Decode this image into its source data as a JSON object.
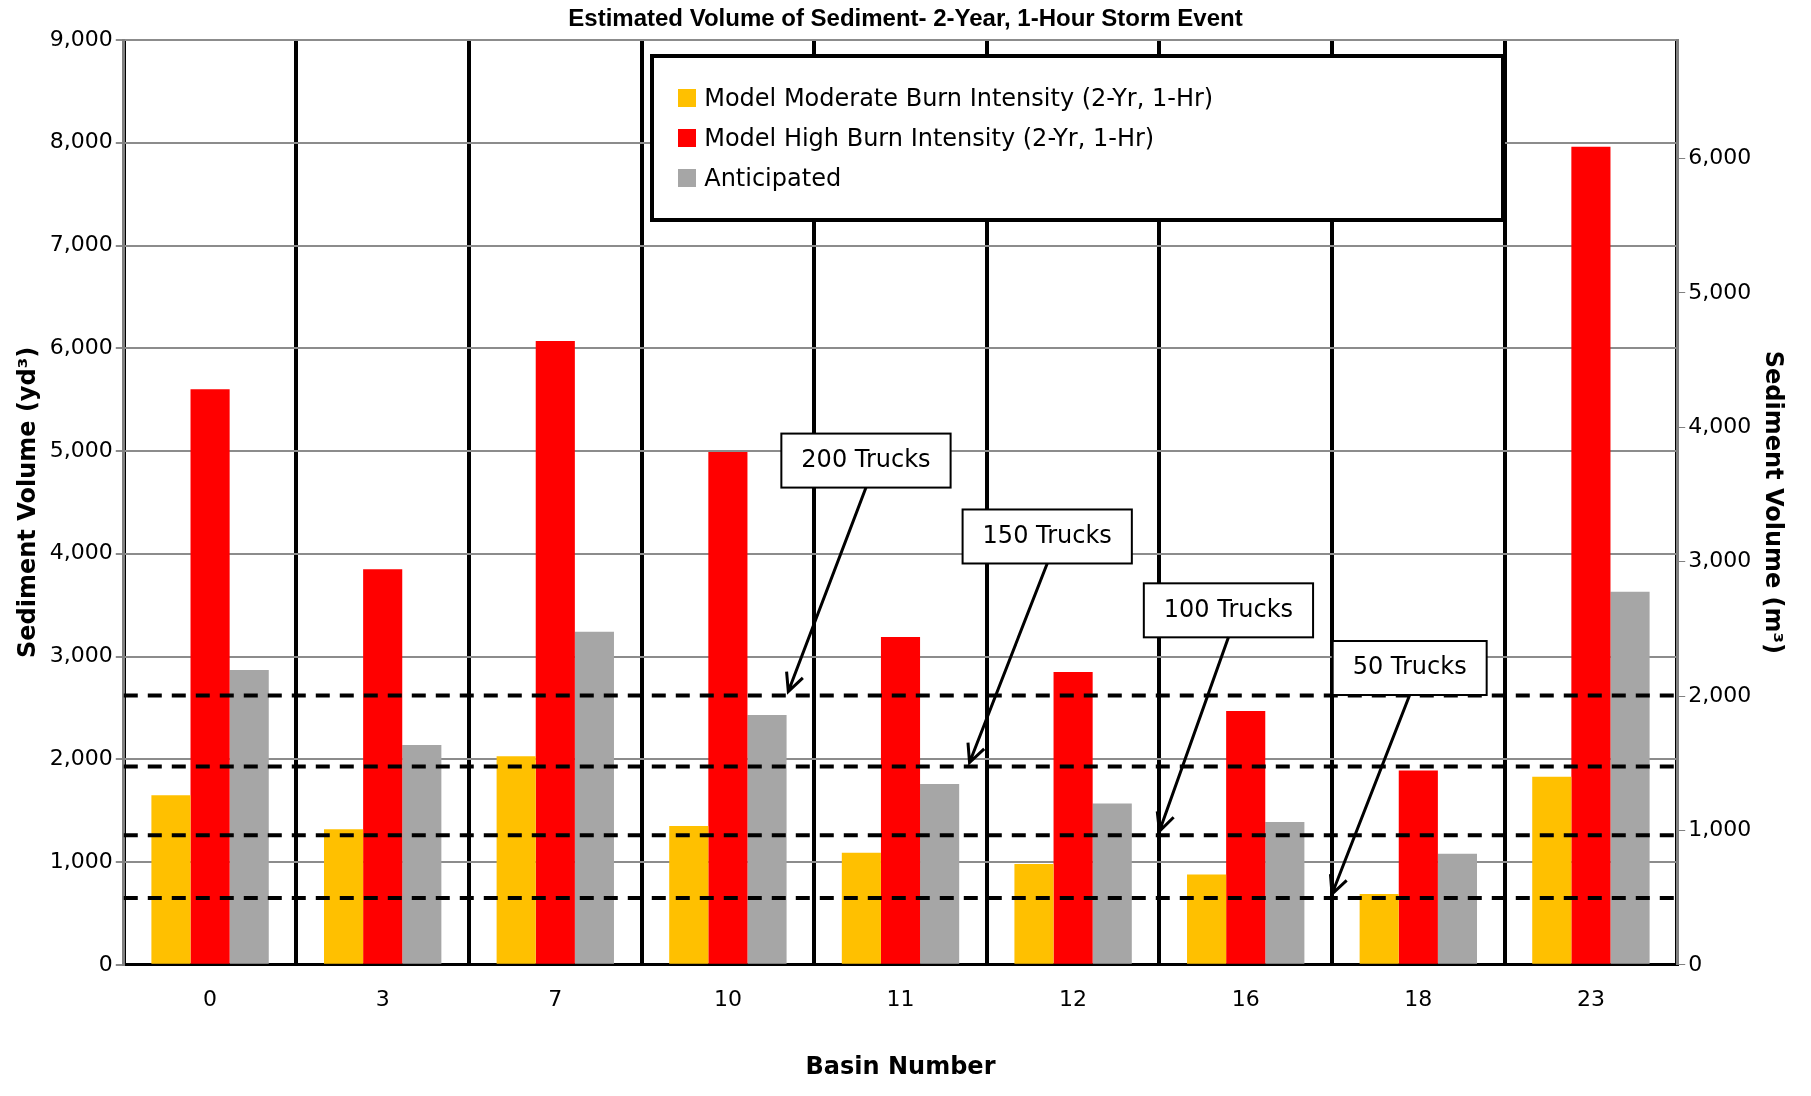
{
  "chart_data": {
    "type": "bar",
    "title": "Estimated Volume of Sediment- 2-Year, 1-Hour Storm Event",
    "xlabel": "Basin Number",
    "ylabel": "Sediment Volume (yd³)",
    "y2label": "Sediment Volume (m³)",
    "categories": [
      "0",
      "3",
      "7",
      "10",
      "11",
      "12",
      "16",
      "18",
      "23"
    ],
    "series": [
      {
        "name": "Model Moderate Burn Intensity (2-Yr, 1-Hr)",
        "color": "#ffc000",
        "values": [
          1650,
          1320,
          2030,
          1350,
          1090,
          980,
          880,
          690,
          1830
        ]
      },
      {
        "name": "Model High Burn Intensity (2-Yr, 1-Hr)",
        "color": "#ff0000",
        "values": [
          5600,
          3850,
          6070,
          4990,
          3190,
          2850,
          2470,
          1890,
          7960
        ]
      },
      {
        "name": "Anticipated",
        "color": "#a6a6a6",
        "values": [
          2870,
          2140,
          3240,
          2430,
          1760,
          1570,
          1390,
          1080,
          3630
        ]
      }
    ],
    "ylim": [
      0,
      9000
    ],
    "yticks": [
      {
        "value": 0,
        "label": "0"
      },
      {
        "value": 1000,
        "label": "1,000"
      },
      {
        "value": 2000,
        "label": "2,000"
      },
      {
        "value": 3000,
        "label": "3,000"
      },
      {
        "value": 4000,
        "label": "4,000"
      },
      {
        "value": 5000,
        "label": "5,000"
      },
      {
        "value": 6000,
        "label": "6,000"
      },
      {
        "value": 7000,
        "label": "7,000"
      },
      {
        "value": 8000,
        "label": "8,000"
      },
      {
        "value": 9000,
        "label": "9,000"
      }
    ],
    "y2lim": [
      0,
      6881
    ],
    "y2ticks": [
      {
        "value": 0,
        "label": "0"
      },
      {
        "value": 1000,
        "label": "1,000"
      },
      {
        "value": 2000,
        "label": "2,000"
      },
      {
        "value": 3000,
        "label": "3,000"
      },
      {
        "value": 4000,
        "label": "4,000"
      },
      {
        "value": 5000,
        "label": "5,000"
      },
      {
        "value": 6000,
        "label": "6,000"
      }
    ],
    "ref_lines": [
      {
        "axis": "y",
        "value": 2620,
        "label": "200 Trucks",
        "color": "#000000",
        "line_style": "dashed"
      },
      {
        "axis": "y",
        "value": 1930,
        "label": "150 Trucks",
        "color": "#000000",
        "line_style": "dashed"
      },
      {
        "axis": "y",
        "value": 1260,
        "label": "100 Trucks",
        "color": "#000000",
        "line_style": "dashed"
      },
      {
        "axis": "y",
        "value": 650,
        "label": "50 Trucks",
        "color": "#000000",
        "line_style": "dashed"
      }
    ],
    "grid": true,
    "legend": "top"
  }
}
